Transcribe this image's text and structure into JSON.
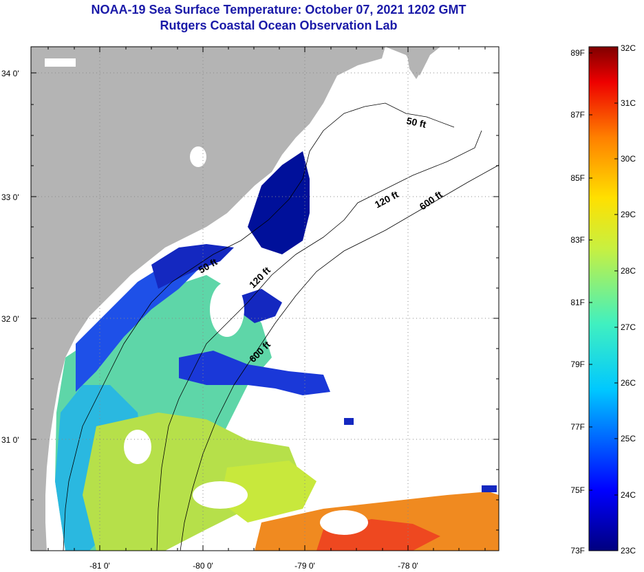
{
  "title": {
    "line1": "NOAA-19 Sea Surface Temperature:  October 07, 2021 1202 GMT",
    "line2": "Rutgers Coastal Ocean Observation Lab"
  },
  "axes": {
    "lat_labels": [
      "34 0'",
      "33 0'",
      "32 0'",
      "31 0'"
    ],
    "lon_labels": [
      "-81 0'",
      "-80 0'",
      "-79 0'",
      "-78 0'"
    ]
  },
  "contours": {
    "c50a": "50 ft",
    "c50b": "50 ft",
    "c120a": "120 ft",
    "c120b": "120 ft",
    "c600a": "600 ft",
    "c600b": "600 ft"
  },
  "colorbar": {
    "fahrenheit": [
      "89F",
      "87F",
      "85F",
      "83F",
      "81F",
      "79F",
      "77F",
      "75F",
      "73F"
    ],
    "celsius": [
      "32C",
      "31C",
      "30C",
      "29C",
      "28C",
      "27C",
      "26C",
      "25C",
      "24C",
      "23C"
    ]
  },
  "colors": {
    "land": "#b4b4b4",
    "nodata": "#ffffff",
    "title": "#1a1aa8"
  }
}
